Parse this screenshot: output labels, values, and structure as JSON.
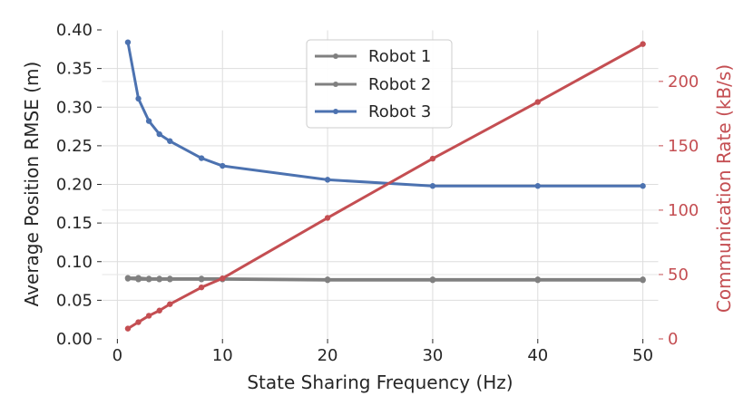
{
  "chart_data": {
    "type": "line",
    "xlabel": "State Sharing Frequency (Hz)",
    "ylabel": "Average Position RMSE (m)",
    "y2label": "Communication Rate (kB/s)",
    "xlim": [
      -1.5,
      51.5
    ],
    "ylim": [
      0.0,
      0.4
    ],
    "y2lim": [
      0,
      240
    ],
    "xticks": [
      0,
      10,
      20,
      30,
      40,
      50
    ],
    "yticks": [
      0.0,
      0.05,
      0.1,
      0.15,
      0.2,
      0.25,
      0.3,
      0.35,
      0.4
    ],
    "y2ticks": [
      0,
      50,
      100,
      150,
      200
    ],
    "x": [
      1,
      2,
      3,
      4,
      5,
      8,
      10,
      20,
      30,
      40,
      50
    ],
    "grid": true,
    "legend_position": "top-center",
    "series": [
      {
        "name": "Robot 1",
        "axis": "left",
        "color": "#808080",
        "values": [
          0.079,
          0.079,
          0.078,
          0.078,
          0.078,
          0.078,
          0.078,
          0.077,
          0.077,
          0.077,
          0.077
        ]
      },
      {
        "name": "Robot 2",
        "axis": "left",
        "color": "#808080",
        "values": [
          0.078,
          0.077,
          0.077,
          0.077,
          0.077,
          0.077,
          0.077,
          0.076,
          0.076,
          0.076,
          0.076
        ]
      },
      {
        "name": "Robot 3",
        "axis": "left",
        "color": "#4c72b0",
        "values": [
          0.384,
          0.311,
          0.282,
          0.265,
          0.256,
          0.234,
          0.224,
          0.206,
          0.198,
          0.198,
          0.198
        ]
      },
      {
        "name": "",
        "axis": "right",
        "color": "#c44e52",
        "values": [
          8,
          13,
          18,
          22,
          27,
          40,
          47,
          94,
          140,
          184,
          229
        ]
      }
    ]
  },
  "legend": [
    "Robot 1",
    "Robot 2",
    "Robot 3"
  ]
}
